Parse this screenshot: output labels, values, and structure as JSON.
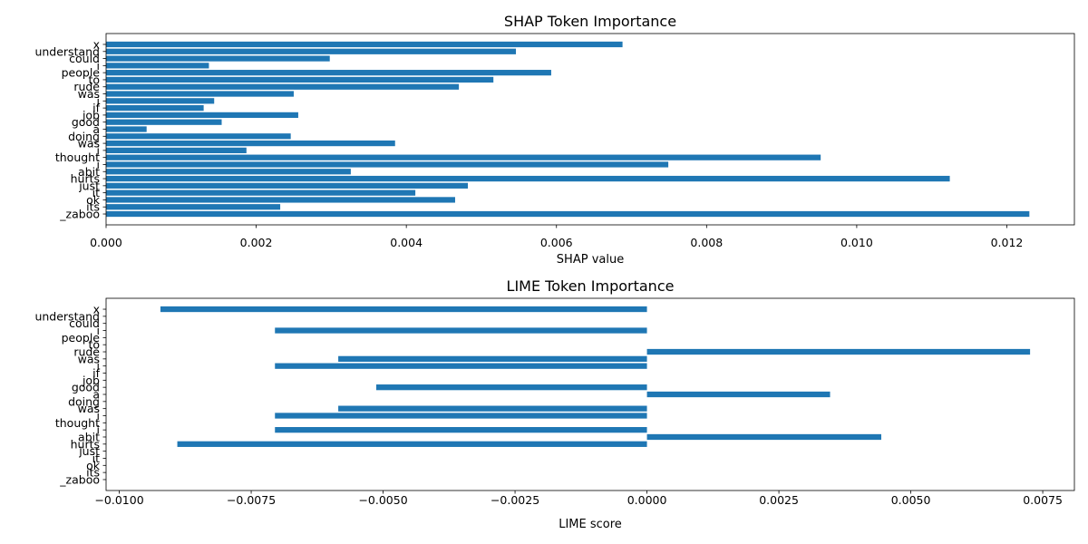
{
  "chart_data": [
    {
      "type": "bar",
      "orientation": "horizontal",
      "title": "SHAP Token Importance",
      "xlabel": "SHAP value",
      "ylabel": "",
      "xlim": [
        0,
        0.0129
      ],
      "xticks": [
        "0.000",
        "0.002",
        "0.004",
        "0.006",
        "0.008",
        "0.010",
        "0.012"
      ],
      "xtick_values": [
        0,
        0.002,
        0.004,
        0.006,
        0.008,
        0.01,
        0.012
      ],
      "color": "#1f77b4",
      "grid": false,
      "categories": [
        "_zaboo",
        "its",
        "ok",
        "it",
        "just",
        "hurts",
        "abit",
        "i",
        "thought",
        "i",
        "was",
        "doing",
        "a",
        "good",
        "job",
        "if",
        "i",
        "was",
        "rude",
        "to",
        "people",
        "i",
        "could",
        "understand",
        "x"
      ],
      "values": [
        0.0123,
        0.00232,
        0.00465,
        0.00412,
        0.00482,
        0.01124,
        0.00326,
        0.00749,
        0.00952,
        0.00187,
        0.00385,
        0.00246,
        0.00054,
        0.00154,
        0.00256,
        0.0013,
        0.00144,
        0.0025,
        0.0047,
        0.00516,
        0.00593,
        0.00137,
        0.00298,
        0.00546,
        0.00688
      ]
    },
    {
      "type": "bar",
      "orientation": "horizontal",
      "title": "LIME Token Importance",
      "xlabel": "LIME score",
      "ylabel": "",
      "xlim": [
        -0.01025,
        0.0081
      ],
      "xticks": [
        "−0.0100",
        "−0.0075",
        "−0.0050",
        "−0.0025",
        "0.0000",
        "0.0025",
        "0.0050",
        "0.0075"
      ],
      "xtick_values": [
        -0.01,
        -0.0075,
        -0.005,
        -0.0025,
        0,
        0.0025,
        0.005,
        0.0075
      ],
      "color": "#1f77b4",
      "grid": false,
      "categories": [
        "_zaboo",
        "its",
        "ok",
        "it",
        "just",
        "hurts",
        "abit",
        "i",
        "thought",
        "i",
        "was",
        "doing",
        "a",
        "good",
        "job",
        "if",
        "i",
        "was",
        "rude",
        "to",
        "people",
        "i",
        "could",
        "understand",
        "x"
      ],
      "values": [
        0,
        0,
        0,
        0,
        0,
        -0.0089,
        0.00444,
        -0.00705,
        0,
        -0.00705,
        -0.00585,
        0,
        0.00347,
        -0.00513,
        0,
        0,
        -0.00705,
        -0.00585,
        0.00726,
        0,
        0,
        -0.00705,
        0,
        0,
        -0.00922
      ]
    }
  ]
}
